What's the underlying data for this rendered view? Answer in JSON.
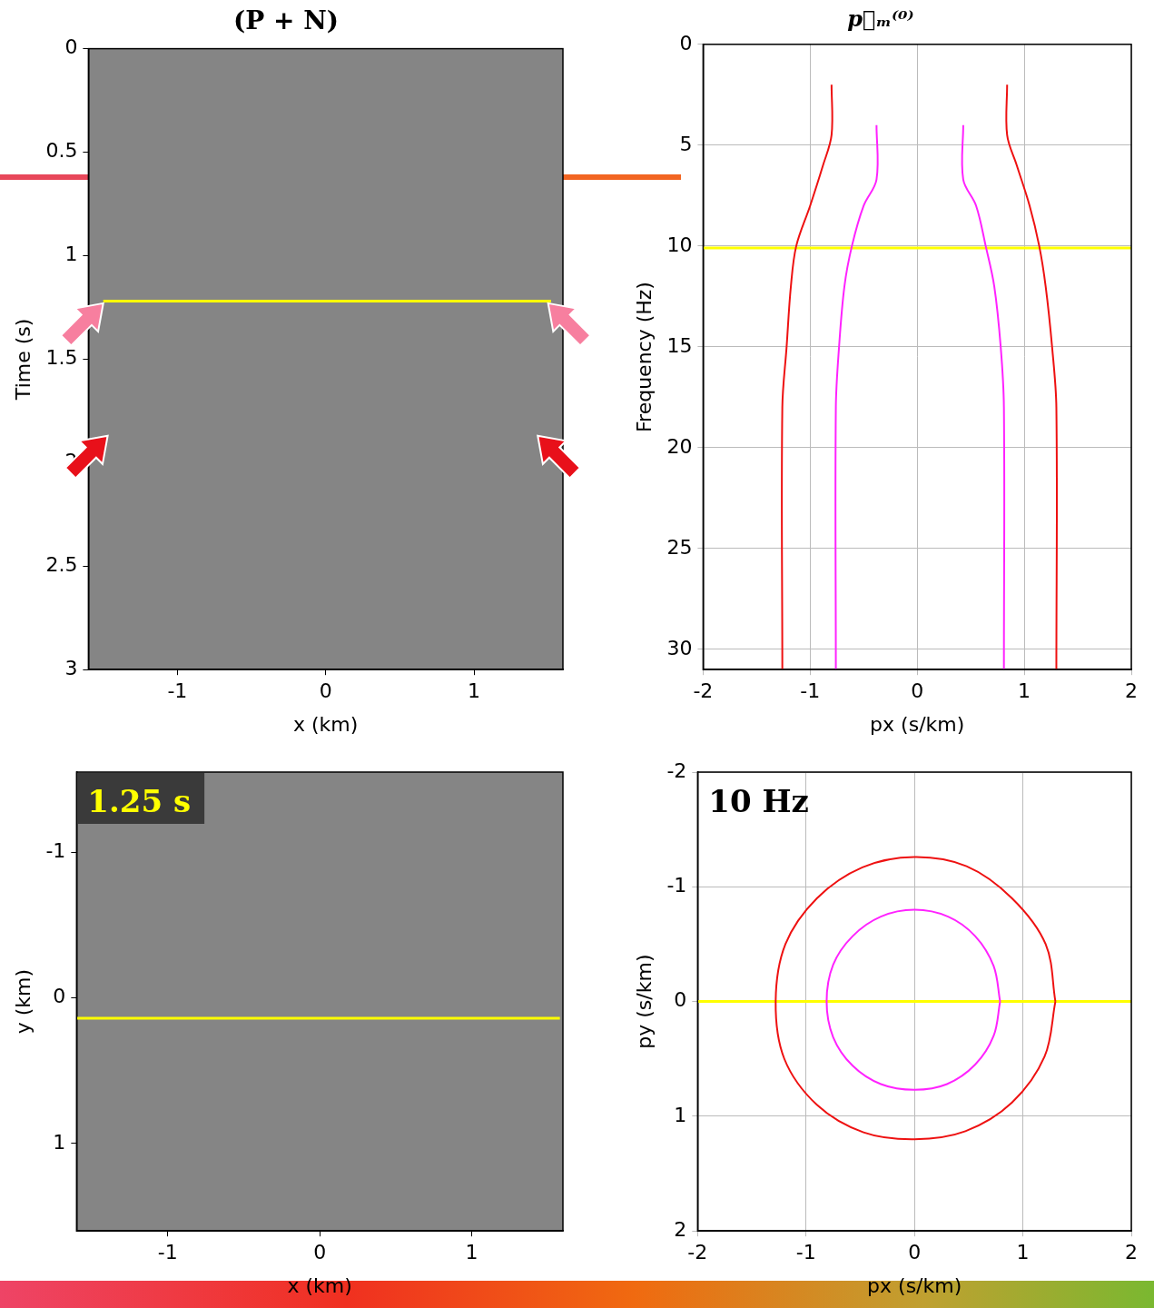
{
  "chart_data": [
    {
      "type": "image",
      "title": "(P + N)",
      "x_label": "x (km)",
      "y_label": "Time (s)",
      "xlim": [
        -1.6,
        1.6
      ],
      "xticks": [
        -1,
        0,
        1
      ],
      "ylim": [
        0,
        3
      ],
      "yticks": [
        0,
        0.5,
        1,
        1.5,
        2,
        2.5,
        3
      ],
      "grid": false,
      "series": [
        {
          "color": "#ffff00",
          "line_style": "solid",
          "x": [
            -1.5,
            1.52
          ],
          "y": [
            1.22,
            1.22
          ]
        }
      ],
      "arrows": [
        {
          "x": -1.5,
          "y": 1.23,
          "color": "#f77f9f"
        },
        {
          "x": 1.5,
          "y": 1.23,
          "color": "#f77f9f"
        },
        {
          "x": -1.47,
          "y": 1.87,
          "color": "#e8101a"
        },
        {
          "x": 1.43,
          "y": 1.87,
          "color": "#e8101a"
        }
      ]
    },
    {
      "type": "line",
      "title": "p⃗ₘ⁽⁰⁾",
      "x_label": "px (s/km)",
      "y_label": "Frequency (Hz)",
      "xlim": [
        -2,
        2
      ],
      "xticks": [
        -2,
        -1,
        0,
        1,
        2
      ],
      "ylim": [
        0,
        31
      ],
      "yticks": [
        0,
        5,
        10,
        15,
        20,
        25,
        30
      ],
      "grid": true,
      "series": [
        {
          "color": "#ee1111",
          "line_style": "smooth",
          "x": [
            -0.8,
            -0.8,
            -0.88,
            -1.0,
            -1.13,
            -1.18,
            -1.22,
            -1.26,
            -1.26
          ],
          "y": [
            2,
            4.5,
            6,
            8,
            10,
            12,
            15,
            18,
            31
          ]
        },
        {
          "color": "#ee1111",
          "line_style": "smooth",
          "x": [
            0.84,
            0.84,
            0.93,
            1.05,
            1.14,
            1.2,
            1.26,
            1.3,
            1.3
          ],
          "y": [
            2,
            4.5,
            6,
            8,
            10,
            12,
            15,
            18,
            31
          ]
        },
        {
          "color": "#ff22ff",
          "line_style": "smooth",
          "x": [
            -0.38,
            -0.38,
            -0.5,
            -0.61,
            -0.68,
            -0.73,
            -0.76,
            -0.76
          ],
          "y": [
            4,
            6.7,
            8,
            10,
            12,
            15,
            18,
            31
          ]
        },
        {
          "color": "#ff22ff",
          "line_style": "smooth",
          "x": [
            0.43,
            0.43,
            0.55,
            0.64,
            0.72,
            0.78,
            0.81,
            0.81
          ],
          "y": [
            4,
            6.7,
            8,
            10,
            12,
            15,
            18,
            31
          ]
        },
        {
          "color": "#ffff00",
          "line_style": "solid",
          "x": [
            -2,
            2
          ],
          "y": [
            10.1,
            10.1
          ]
        }
      ]
    },
    {
      "type": "image",
      "x_label": "x (km)",
      "y_label": "y (km)",
      "xlim": [
        -1.6,
        1.6
      ],
      "xticks": [
        -1,
        0,
        1
      ],
      "ylim": [
        -1.55,
        1.6
      ],
      "yticks": [
        -1,
        0,
        1
      ],
      "grid": false,
      "annotations": [
        {
          "text": "1.25 s",
          "color": "#ffff00"
        }
      ],
      "series": [
        {
          "color": "#ffff00",
          "line_style": "solid",
          "x": [
            -1.6,
            1.58
          ],
          "y": [
            0.14,
            0.14
          ]
        }
      ]
    },
    {
      "type": "line",
      "x_label": "px (s/km)",
      "y_label": "py (s/km)",
      "xlim": [
        -2,
        2
      ],
      "xticks": [
        -2,
        -1,
        0,
        1,
        2
      ],
      "ylim": [
        -2,
        2
      ],
      "yticks": [
        -2,
        -1,
        0,
        1,
        2
      ],
      "grid": true,
      "annotations": [
        {
          "text": "10 Hz",
          "color": "#000000"
        }
      ],
      "series": [
        {
          "color": "#ee1111",
          "line_style": "smooth",
          "x": [
            1.3,
            1.2,
            0.9,
            0.47,
            0,
            -0.47,
            -0.9,
            -1.2,
            -1.28,
            -1.19,
            -0.9,
            -0.48,
            0,
            0.48,
            0.9,
            1.21,
            1.3
          ],
          "y": [
            0,
            0.48,
            0.88,
            1.13,
            1.2,
            1.14,
            0.9,
            0.5,
            0,
            -0.5,
            -0.9,
            -1.17,
            -1.26,
            -1.18,
            -0.9,
            -0.5,
            0
          ]
        },
        {
          "color": "#ff22ff",
          "line_style": "smooth",
          "x": [
            0.79,
            0.73,
            0.56,
            0.3,
            0,
            -0.31,
            -0.57,
            -0.75,
            -0.81,
            -0.75,
            -0.57,
            -0.31,
            0,
            0.31,
            0.56,
            0.73,
            0.79
          ],
          "y": [
            0,
            0.3,
            0.55,
            0.72,
            0.77,
            0.72,
            0.56,
            0.31,
            0,
            -0.32,
            -0.57,
            -0.74,
            -0.8,
            -0.74,
            -0.57,
            -0.31,
            0
          ]
        },
        {
          "color": "#ffff00",
          "line_style": "solid",
          "x": [
            -2,
            2
          ],
          "y": [
            0,
            0
          ]
        }
      ]
    }
  ]
}
